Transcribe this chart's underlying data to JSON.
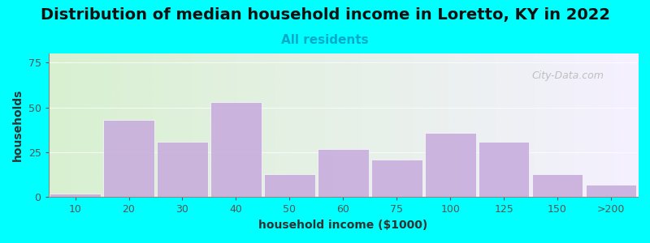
{
  "title": "Distribution of median household income in Loretto, KY in 2022",
  "subtitle": "All residents",
  "xlabel": "household income ($1000)",
  "ylabel": "households",
  "background_color": "#00FFFF",
  "plot_bg_gradient_left": "#d8f0d0",
  "plot_bg_gradient_right": "#f5f0ff",
  "bar_color": "#c8aedd",
  "bar_edge_color": "#c8aedd",
  "categories": [
    "10",
    "20",
    "30",
    "40",
    "50",
    "60",
    "75",
    "100",
    "125",
    "150",
    ">200"
  ],
  "values": [
    2,
    43,
    31,
    53,
    13,
    27,
    21,
    36,
    31,
    13,
    7
  ],
  "ylim": [
    0,
    80
  ],
  "yticks": [
    0,
    25,
    50,
    75
  ],
  "title_fontsize": 14,
  "subtitle_fontsize": 11,
  "axis_label_fontsize": 10,
  "tick_fontsize": 9,
  "watermark_text": "City-Data.com"
}
